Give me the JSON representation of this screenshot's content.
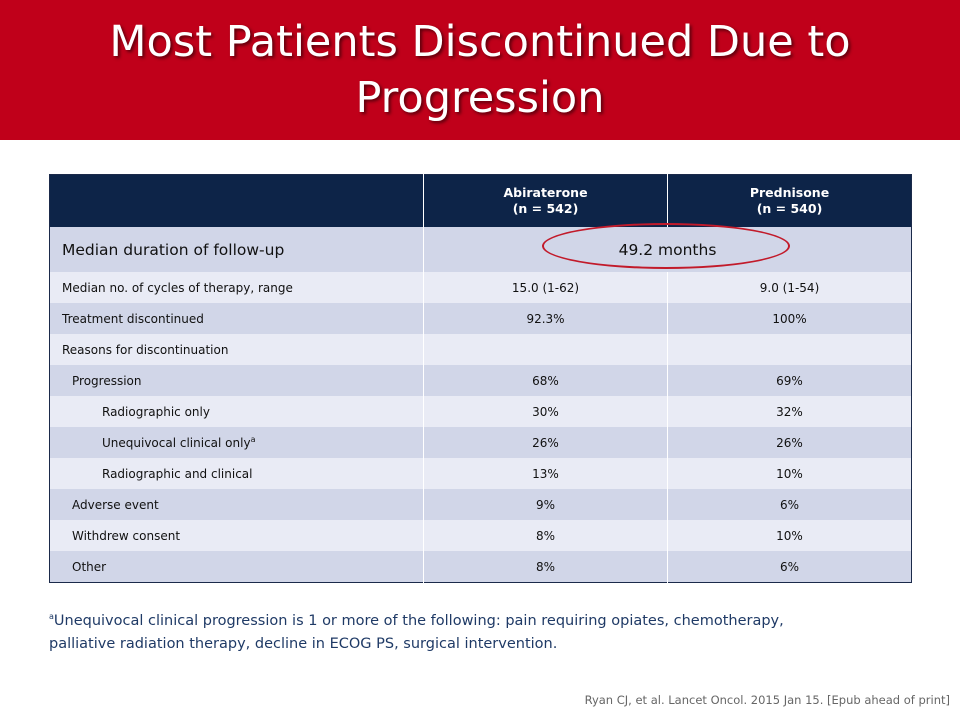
{
  "slide": {
    "title_line1": "Most Patients Discontinued Due to",
    "title_line2": "Progression"
  },
  "table": {
    "headers": [
      {
        "name": "Abiraterone",
        "n": "(n = 542)"
      },
      {
        "name": "Prednisone",
        "n": "(n = 540)"
      }
    ],
    "followup": {
      "label": "Median duration of follow-up",
      "value": "49.2 months"
    },
    "rows": [
      {
        "label": "Median no. of cycles of therapy, range",
        "abiraterone": "15.0 (1-62)",
        "prednisone": "9.0 (1-54)"
      },
      {
        "label": "Treatment discontinued",
        "abiraterone": "92.3%",
        "prednisone": "100%"
      },
      {
        "label": "Reasons for discontinuation",
        "abiraterone": "",
        "prednisone": ""
      },
      {
        "label": "Progression",
        "abiraterone": "68%",
        "prednisone": "69%"
      },
      {
        "label": "Radiographic only",
        "abiraterone": "30%",
        "prednisone": "32%"
      },
      {
        "label": "Unequivocal clinical only",
        "label_sup": "a",
        "abiraterone": "26%",
        "prednisone": "26%"
      },
      {
        "label": "Radiographic and clinical",
        "abiraterone": "13%",
        "prednisone": "10%"
      },
      {
        "label": "Adverse event",
        "abiraterone": "9%",
        "prednisone": "6%"
      },
      {
        "label": "Withdrew consent",
        "abiraterone": "8%",
        "prednisone": "10%"
      },
      {
        "label": "Other",
        "abiraterone": "8%",
        "prednisone": "6%"
      }
    ]
  },
  "footnote": {
    "marker": "a",
    "line1": "Unequivocal clinical progression is 1 or more of the following: pain requiring opiates, chemotherapy,",
    "line2": "palliative radiation therapy, decline in ECOG PS, surgical intervention."
  },
  "citation": "Ryan CJ, et al. Lancet Oncol. 2015 Jan 15. [Epub ahead of print]",
  "colors": {
    "title_bar": "#c0001a",
    "header_bg": "#0d2448",
    "row_dark": "#d1d6e8",
    "row_light": "#e9ebf5",
    "ellipse": "#c21a2a"
  }
}
